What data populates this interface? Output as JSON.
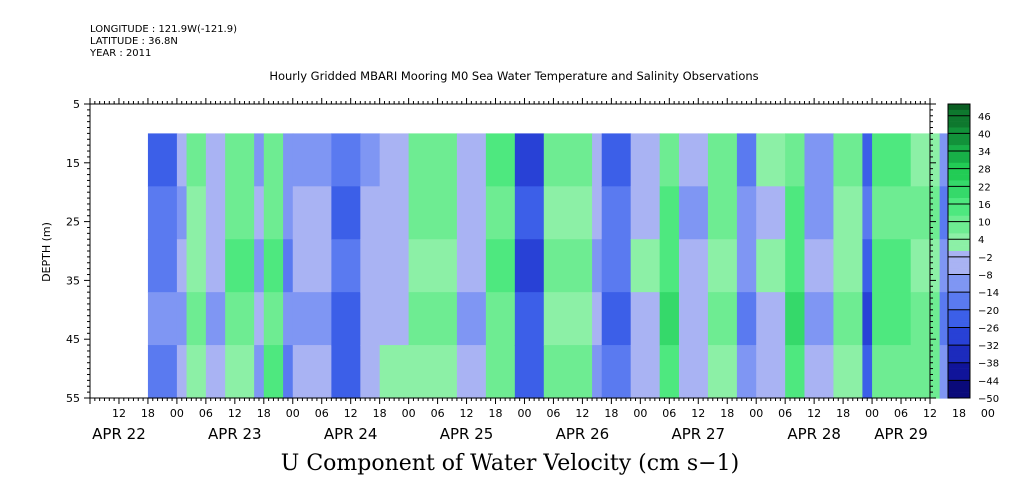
{
  "header": {
    "longitude": "LONGITUDE : 121.9W(-121.9)",
    "latitude": "LATITUDE : 36.8N",
    "year": "YEAR : 2011"
  },
  "chart_data": {
    "type": "heatmap",
    "title": "Hourly Gridded MBARI Mooring M0 Sea Water Temperature and Salinity Observations",
    "xlabel": "U Component of Water Velocity (cm s−1)",
    "ylabel": "DEPTH (m)",
    "y_axis": {
      "range": [
        5,
        55
      ],
      "inverted": true,
      "ticks": [
        "5",
        "15",
        "25",
        "35",
        "45",
        "55"
      ],
      "data_range": [
        10,
        55
      ]
    },
    "x_axis": {
      "hour_ticks": [
        "12",
        "18",
        "00",
        "06",
        "12",
        "18",
        "00",
        "06",
        "12",
        "18",
        "00",
        "06",
        "12",
        "18",
        "00",
        "06",
        "12",
        "18",
        "00",
        "06",
        "12",
        "18",
        "00",
        "06",
        "12",
        "18",
        "00",
        "06",
        "12",
        "18",
        "00",
        "06"
      ],
      "day_labels": [
        "APR 22",
        "APR 23",
        "APR 24",
        "APR 25",
        "APR 26",
        "APR 27",
        "APR 28",
        "APR 29"
      ],
      "data_start": "APR 22 18:00",
      "data_end": "APR 29 ~11:00"
    },
    "colorbar": {
      "labels": [
        "46",
        "40",
        "34",
        "28",
        "22",
        "16",
        "10",
        "4",
        "−2",
        "−8",
        "−14",
        "−20",
        "−26",
        "−32",
        "−38",
        "−44",
        "−50"
      ],
      "range": [
        -50,
        50
      ]
    },
    "pattern": {
      "description": "alternating positive (green) / negative (blue) bands in time, mostly vertical with depth",
      "band_hours": [
        24,
        26,
        30,
        34,
        40,
        42,
        46,
        48,
        56,
        62,
        66,
        72,
        82,
        88,
        94,
        100,
        110,
        112,
        118,
        124,
        128,
        134,
        140,
        144,
        150,
        154,
        160,
        166,
        168,
        176,
        182,
        186
      ],
      "band_values": [
        -18,
        -8,
        4,
        -6,
        8,
        -10,
        10,
        -14,
        -8,
        -22,
        -6,
        -4,
        6,
        -6,
        10,
        -26,
        6,
        -8,
        -20,
        -4,
        14,
        -6,
        6,
        -14,
        -2,
        14,
        -10,
        4,
        -24,
        12,
        6,
        -14,
        10
      ]
    }
  },
  "colors": {
    "blue_strong": "#3c5fe8",
    "blue_mid": "#7f96f3",
    "blue_light": "#a9b3f3",
    "green_light": "#8cf0a6",
    "green_mid": "#4ee87f",
    "green_strong": "#22cc55"
  }
}
